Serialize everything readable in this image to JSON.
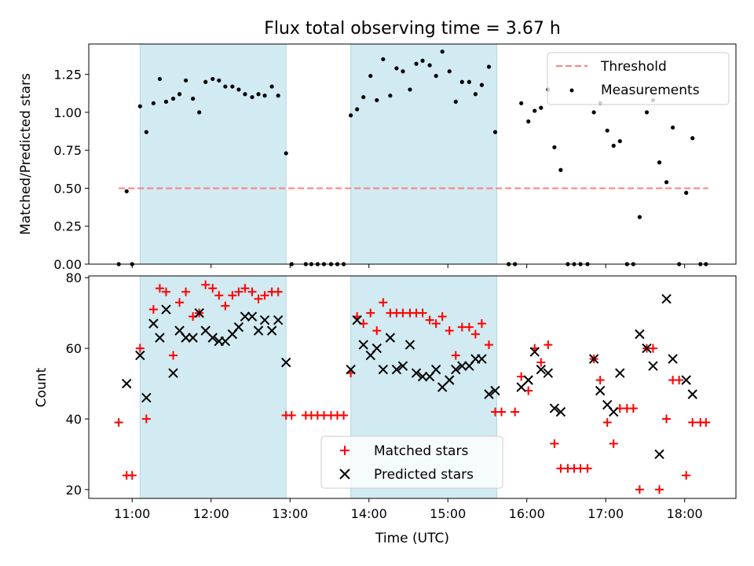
{
  "title": "Flux total observing time = 3.67 h",
  "colors": {
    "observing_band": "#add8e6",
    "threshold": "#ff7f7f",
    "measurements": "#000000",
    "matched": "#ff0000",
    "predicted": "#000000"
  },
  "chart_data": [
    {
      "type": "scatter",
      "ylabel": "Matched/Predicted stars",
      "ylim": [
        0,
        1.45
      ],
      "yticks": [
        "0.00",
        "0.25",
        "0.50",
        "0.75",
        "1.00",
        "1.25"
      ],
      "xlim_hours": [
        10.45,
        18.65
      ],
      "shaded_spans_hours": [
        [
          11.1,
          12.95
        ],
        [
          13.77,
          15.62
        ]
      ],
      "legend": {
        "position": "top-right",
        "entries": [
          "Threshold",
          "Measurements"
        ]
      },
      "threshold": {
        "name": "Threshold",
        "value": 0.5,
        "x_from_hours": 10.83,
        "x_to_hours": 18.3
      },
      "series": [
        {
          "name": "Measurements",
          "marker": "dot",
          "points": [
            [
              10.83,
              0
            ],
            [
              10.93,
              0.48
            ],
            [
              11.0,
              0
            ],
            [
              11.1,
              1.04
            ],
            [
              11.18,
              0.87
            ],
            [
              11.27,
              1.06
            ],
            [
              11.35,
              1.22
            ],
            [
              11.43,
              1.07
            ],
            [
              11.52,
              1.09
            ],
            [
              11.6,
              1.12
            ],
            [
              11.68,
              1.21
            ],
            [
              11.77,
              1.09
            ],
            [
              11.85,
              1.0
            ],
            [
              11.93,
              1.2
            ],
            [
              12.02,
              1.22
            ],
            [
              12.1,
              1.21
            ],
            [
              12.18,
              1.17
            ],
            [
              12.27,
              1.17
            ],
            [
              12.35,
              1.15
            ],
            [
              12.43,
              1.12
            ],
            [
              12.52,
              1.1
            ],
            [
              12.6,
              1.12
            ],
            [
              12.68,
              1.11
            ],
            [
              12.77,
              1.17
            ],
            [
              12.85,
              1.11
            ],
            [
              12.95,
              0.73
            ],
            [
              13.02,
              0
            ],
            [
              13.2,
              0
            ],
            [
              13.27,
              0
            ],
            [
              13.35,
              0
            ],
            [
              13.43,
              0
            ],
            [
              13.52,
              0
            ],
            [
              13.6,
              0
            ],
            [
              13.68,
              0
            ],
            [
              13.77,
              0.98
            ],
            [
              13.85,
              1.02
            ],
            [
              13.93,
              1.1
            ],
            [
              14.02,
              1.24
            ],
            [
              14.1,
              1.08
            ],
            [
              14.18,
              1.35
            ],
            [
              14.27,
              1.11
            ],
            [
              14.35,
              1.29
            ],
            [
              14.43,
              1.27
            ],
            [
              14.52,
              1.15
            ],
            [
              14.6,
              1.32
            ],
            [
              14.68,
              1.34
            ],
            [
              14.77,
              1.31
            ],
            [
              14.85,
              1.24
            ],
            [
              14.93,
              1.4
            ],
            [
              15.02,
              1.27
            ],
            [
              15.1,
              1.07
            ],
            [
              15.18,
              1.2
            ],
            [
              15.27,
              1.2
            ],
            [
              15.35,
              1.12
            ],
            [
              15.43,
              1.18
            ],
            [
              15.52,
              1.3
            ],
            [
              15.6,
              0.87
            ],
            [
              15.77,
              0
            ],
            [
              15.85,
              0
            ],
            [
              15.93,
              1.06
            ],
            [
              16.02,
              0.94
            ],
            [
              16.1,
              1.01
            ],
            [
              16.18,
              1.03
            ],
            [
              16.27,
              1.15
            ],
            [
              16.35,
              0.77
            ],
            [
              16.43,
              0.62
            ],
            [
              16.52,
              0
            ],
            [
              16.6,
              0
            ],
            [
              16.68,
              0
            ],
            [
              16.77,
              0
            ],
            [
              16.85,
              1.0
            ],
            [
              16.93,
              1.06
            ],
            [
              17.02,
              0.88
            ],
            [
              17.1,
              0.78
            ],
            [
              17.18,
              0.81
            ],
            [
              17.27,
              0
            ],
            [
              17.35,
              0
            ],
            [
              17.43,
              0.31
            ],
            [
              17.52,
              1.0
            ],
            [
              17.6,
              1.08
            ],
            [
              17.68,
              0.67
            ],
            [
              17.77,
              0.54
            ],
            [
              17.85,
              0.9
            ],
            [
              17.93,
              0
            ],
            [
              18.02,
              0.47
            ],
            [
              18.1,
              0.83
            ],
            [
              18.2,
              0
            ],
            [
              18.27,
              0
            ]
          ]
        }
      ]
    },
    {
      "type": "scatter",
      "xlabel": "Time (UTC)",
      "ylabel": "Count",
      "ylim": [
        17.5,
        80.5
      ],
      "yticks": [
        "20",
        "40",
        "60",
        "80"
      ],
      "xlim_hours": [
        10.45,
        18.65
      ],
      "xticks": [
        {
          "hours": 11,
          "label": "11:00"
        },
        {
          "hours": 12,
          "label": "12:00"
        },
        {
          "hours": 13,
          "label": "13:00"
        },
        {
          "hours": 14,
          "label": "14:00"
        },
        {
          "hours": 15,
          "label": "15:00"
        },
        {
          "hours": 16,
          "label": "16:00"
        },
        {
          "hours": 17,
          "label": "17:00"
        },
        {
          "hours": 18,
          "label": "18:00"
        }
      ],
      "shaded_spans_hours": [
        [
          11.1,
          12.95
        ],
        [
          13.77,
          15.62
        ]
      ],
      "legend": {
        "position": "bottom-center",
        "entries": [
          "Matched stars",
          "Predicted stars"
        ]
      },
      "series": [
        {
          "name": "Matched stars",
          "marker": "plus",
          "points": [
            [
              10.83,
              39
            ],
            [
              10.93,
              24
            ],
            [
              11.0,
              24
            ],
            [
              11.1,
              60
            ],
            [
              11.18,
              40
            ],
            [
              11.27,
              71
            ],
            [
              11.35,
              77
            ],
            [
              11.43,
              76
            ],
            [
              11.52,
              58
            ],
            [
              11.6,
              73
            ],
            [
              11.68,
              76
            ],
            [
              11.77,
              69
            ],
            [
              11.85,
              70
            ],
            [
              11.93,
              78
            ],
            [
              12.02,
              77
            ],
            [
              12.1,
              75
            ],
            [
              12.18,
              72
            ],
            [
              12.27,
              75
            ],
            [
              12.35,
              76
            ],
            [
              12.43,
              77
            ],
            [
              12.52,
              76
            ],
            [
              12.6,
              74
            ],
            [
              12.68,
              75
            ],
            [
              12.77,
              76
            ],
            [
              12.85,
              76
            ],
            [
              12.95,
              41
            ],
            [
              13.02,
              41
            ],
            [
              13.2,
              41
            ],
            [
              13.27,
              41
            ],
            [
              13.35,
              41
            ],
            [
              13.43,
              41
            ],
            [
              13.52,
              41
            ],
            [
              13.6,
              41
            ],
            [
              13.68,
              41
            ],
            [
              13.77,
              53
            ],
            [
              13.85,
              69
            ],
            [
              13.93,
              67
            ],
            [
              14.02,
              70
            ],
            [
              14.1,
              65
            ],
            [
              14.18,
              73
            ],
            [
              14.27,
              70
            ],
            [
              14.35,
              70
            ],
            [
              14.43,
              70
            ],
            [
              14.52,
              70
            ],
            [
              14.6,
              70
            ],
            [
              14.68,
              70
            ],
            [
              14.77,
              68
            ],
            [
              14.85,
              67
            ],
            [
              14.93,
              69
            ],
            [
              15.02,
              65
            ],
            [
              15.1,
              58
            ],
            [
              15.18,
              66
            ],
            [
              15.27,
              66
            ],
            [
              15.35,
              64
            ],
            [
              15.43,
              67
            ],
            [
              15.52,
              61
            ],
            [
              15.6,
              42
            ],
            [
              15.68,
              42
            ],
            [
              15.85,
              42
            ],
            [
              15.93,
              52
            ],
            [
              16.02,
              48
            ],
            [
              16.1,
              60
            ],
            [
              16.18,
              56
            ],
            [
              16.27,
              61
            ],
            [
              16.35,
              33
            ],
            [
              16.43,
              26
            ],
            [
              16.52,
              26
            ],
            [
              16.6,
              26
            ],
            [
              16.68,
              26
            ],
            [
              16.77,
              26
            ],
            [
              16.85,
              57
            ],
            [
              16.93,
              51
            ],
            [
              17.02,
              39
            ],
            [
              17.1,
              33
            ],
            [
              17.18,
              43
            ],
            [
              17.27,
              43
            ],
            [
              17.35,
              43
            ],
            [
              17.43,
              20
            ],
            [
              17.52,
              60
            ],
            [
              17.6,
              60
            ],
            [
              17.68,
              20
            ],
            [
              17.77,
              40
            ],
            [
              17.85,
              51
            ],
            [
              17.93,
              51
            ],
            [
              18.02,
              24
            ],
            [
              18.1,
              39
            ],
            [
              18.2,
              39
            ],
            [
              18.27,
              39
            ]
          ]
        },
        {
          "name": "Predicted stars",
          "marker": "x",
          "points": [
            [
              10.93,
              50
            ],
            [
              11.1,
              58
            ],
            [
              11.18,
              46
            ],
            [
              11.27,
              67
            ],
            [
              11.35,
              63
            ],
            [
              11.43,
              71
            ],
            [
              11.52,
              53
            ],
            [
              11.6,
              65
            ],
            [
              11.68,
              63
            ],
            [
              11.77,
              63
            ],
            [
              11.85,
              70
            ],
            [
              11.93,
              65
            ],
            [
              12.02,
              63
            ],
            [
              12.1,
              62
            ],
            [
              12.18,
              62
            ],
            [
              12.27,
              64
            ],
            [
              12.35,
              66
            ],
            [
              12.43,
              69
            ],
            [
              12.52,
              69
            ],
            [
              12.6,
              65
            ],
            [
              12.68,
              68
            ],
            [
              12.77,
              65
            ],
            [
              12.85,
              68
            ],
            [
              12.95,
              56
            ],
            [
              13.77,
              54
            ],
            [
              13.85,
              68
            ],
            [
              13.93,
              61
            ],
            [
              14.02,
              58
            ],
            [
              14.1,
              60
            ],
            [
              14.18,
              54
            ],
            [
              14.27,
              63
            ],
            [
              14.35,
              54
            ],
            [
              14.43,
              55
            ],
            [
              14.52,
              61
            ],
            [
              14.6,
              53
            ],
            [
              14.68,
              52
            ],
            [
              14.77,
              52
            ],
            [
              14.85,
              54
            ],
            [
              14.93,
              49
            ],
            [
              15.02,
              51
            ],
            [
              15.1,
              54
            ],
            [
              15.18,
              55
            ],
            [
              15.27,
              55
            ],
            [
              15.35,
              57
            ],
            [
              15.43,
              57
            ],
            [
              15.52,
              47
            ],
            [
              15.6,
              48
            ],
            [
              15.93,
              49
            ],
            [
              16.02,
              51
            ],
            [
              16.1,
              59
            ],
            [
              16.18,
              54
            ],
            [
              16.27,
              53
            ],
            [
              16.35,
              43
            ],
            [
              16.43,
              42
            ],
            [
              16.85,
              57
            ],
            [
              16.93,
              48
            ],
            [
              17.02,
              44
            ],
            [
              17.1,
              42
            ],
            [
              17.18,
              53
            ],
            [
              17.43,
              64
            ],
            [
              17.52,
              60
            ],
            [
              17.6,
              55
            ],
            [
              17.68,
              30
            ],
            [
              17.77,
              74
            ],
            [
              17.85,
              57
            ],
            [
              18.02,
              51
            ],
            [
              18.1,
              47
            ]
          ]
        }
      ]
    }
  ]
}
